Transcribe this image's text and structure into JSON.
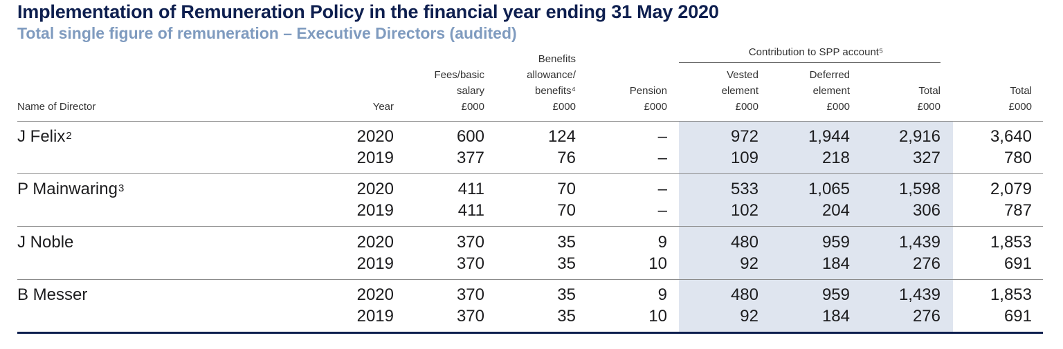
{
  "title": "Implementation of Remuneration Policy in the financial year ending 31 May 2020",
  "subtitle": "Total single figure of remuneration – Executive Directors (audited)",
  "spp_header": "Contribution to SPP account⁵",
  "headers": {
    "name": "Name of Director",
    "year": "Year",
    "fees": [
      "Fees/basic",
      "salary",
      "£000"
    ],
    "benefits": [
      "Benefits",
      "allowance/",
      "benefits⁴",
      "£000"
    ],
    "pension": [
      "Pension",
      "£000"
    ],
    "vested": [
      "Vested",
      "element",
      "£000"
    ],
    "deferred": [
      "Deferred",
      "element",
      "£000"
    ],
    "spp_total": [
      "Total",
      "£000"
    ],
    "total": [
      "Total",
      "£000"
    ]
  },
  "directors": [
    {
      "name": "J Felix",
      "note": "2",
      "rows": [
        {
          "year": "2020",
          "fees": "600",
          "benefits": "124",
          "pension": "–",
          "vested": "972",
          "deferred": "1,944",
          "spp_total": "2,916",
          "total": "3,640"
        },
        {
          "year": "2019",
          "fees": "377",
          "benefits": "76",
          "pension": "–",
          "vested": "109",
          "deferred": "218",
          "spp_total": "327",
          "total": "780"
        }
      ]
    },
    {
      "name": "P Mainwaring",
      "note": "3",
      "rows": [
        {
          "year": "2020",
          "fees": "411",
          "benefits": "70",
          "pension": "–",
          "vested": "533",
          "deferred": "1,065",
          "spp_total": "1,598",
          "total": "2,079"
        },
        {
          "year": "2019",
          "fees": "411",
          "benefits": "70",
          "pension": "–",
          "vested": "102",
          "deferred": "204",
          "spp_total": "306",
          "total": "787"
        }
      ]
    },
    {
      "name": "J Noble",
      "note": "",
      "rows": [
        {
          "year": "2020",
          "fees": "370",
          "benefits": "35",
          "pension": "9",
          "vested": "480",
          "deferred": "959",
          "spp_total": "1,439",
          "total": "1,853"
        },
        {
          "year": "2019",
          "fees": "370",
          "benefits": "35",
          "pension": "10",
          "vested": "92",
          "deferred": "184",
          "spp_total": "276",
          "total": "691"
        }
      ]
    },
    {
      "name": "B Messer",
      "note": "",
      "rows": [
        {
          "year": "2020",
          "fees": "370",
          "benefits": "35",
          "pension": "9",
          "vested": "480",
          "deferred": "959",
          "spp_total": "1,439",
          "total": "1,853"
        },
        {
          "year": "2019",
          "fees": "370",
          "benefits": "35",
          "pension": "10",
          "vested": "92",
          "deferred": "184",
          "spp_total": "276",
          "total": "691"
        }
      ]
    }
  ]
}
